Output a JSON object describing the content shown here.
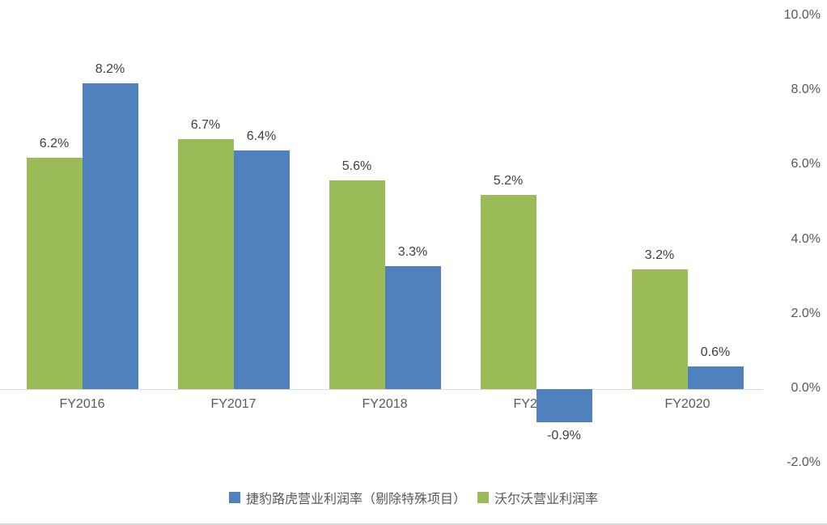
{
  "chart_data": {
    "type": "bar",
    "categories": [
      "FY2016",
      "FY2017",
      "FY2018",
      "FY2019",
      "FY2020"
    ],
    "series": [
      {
        "name": "捷豹路虎营业利润率（剔除特殊项目）",
        "color": "#4e81bd",
        "values": [
          8.2,
          6.4,
          3.3,
          -0.9,
          0.6
        ],
        "labels": [
          "8.2%",
          "6.4%",
          "3.3%",
          "-0.9%",
          "0.6%"
        ]
      },
      {
        "name": "沃尔沃营业利润率",
        "color": "#9bbb59",
        "values": [
          6.2,
          6.7,
          5.6,
          5.2,
          3.2
        ],
        "labels": [
          "6.2%",
          "6.7%",
          "5.6%",
          "5.2%",
          "3.2%"
        ]
      }
    ],
    "bar_display_order": [
      1,
      0
    ],
    "title": "",
    "xlabel": "",
    "ylabel": "",
    "ylim": [
      -2,
      10
    ],
    "yticks": [
      {
        "value": 10,
        "label": "10.0%"
      },
      {
        "value": 8,
        "label": "8.0%"
      },
      {
        "value": 6,
        "label": "6.0%"
      },
      {
        "value": 4,
        "label": "4.0%"
      },
      {
        "value": 2,
        "label": "2.0%"
      },
      {
        "value": 0,
        "label": "0.0%"
      },
      {
        "value": -2,
        "label": "-2.0%"
      }
    ],
    "y_axis_side": "right",
    "grid": false,
    "legend_position": "bottom",
    "axis_line_color": "#d9d9d9",
    "label_text_color": "#404040",
    "axis_text_color": "#595959"
  }
}
